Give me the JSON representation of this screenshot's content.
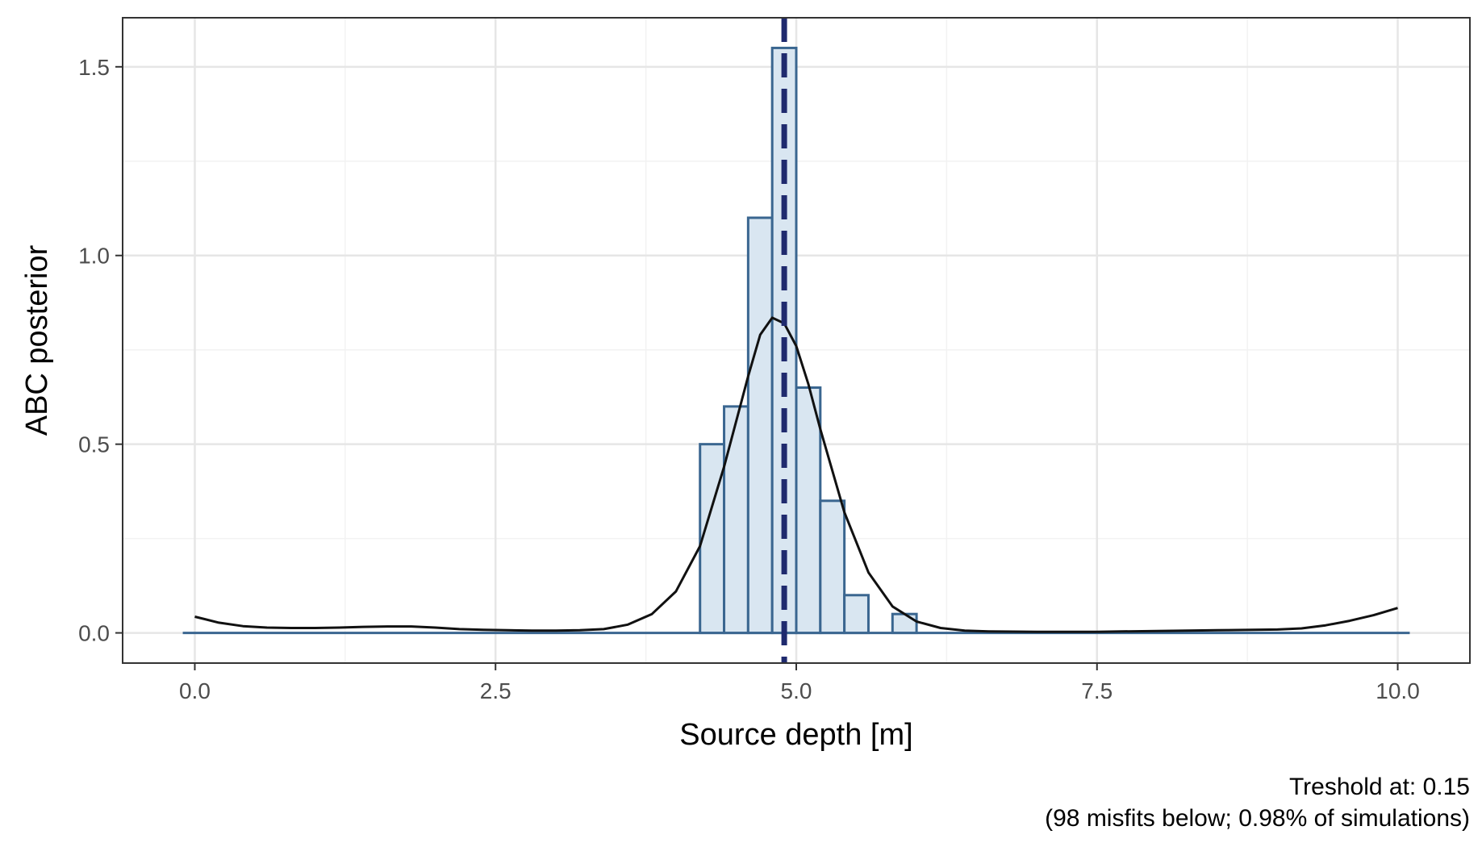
{
  "chart_data": {
    "type": "bar",
    "title": "",
    "xlabel": "Source depth [m]",
    "ylabel": "ABC posterior",
    "xlim": [
      -0.6,
      10.6
    ],
    "ylim": [
      -0.08,
      1.63
    ],
    "x_ticks": [
      {
        "value": 0.0,
        "label": "0.0"
      },
      {
        "value": 2.5,
        "label": "2.5"
      },
      {
        "value": 5.0,
        "label": "5.0"
      },
      {
        "value": 7.5,
        "label": "7.5"
      },
      {
        "value": 10.0,
        "label": "10.0"
      }
    ],
    "y_ticks": [
      {
        "value": 0.0,
        "label": "0.0"
      },
      {
        "value": 0.5,
        "label": "0.5"
      },
      {
        "value": 1.0,
        "label": "1.0"
      },
      {
        "value": 1.5,
        "label": "1.5"
      }
    ],
    "histogram": {
      "bin_width": 0.2,
      "bins": [
        {
          "x0": 4.2,
          "value": 0.5
        },
        {
          "x0": 4.4,
          "value": 0.6
        },
        {
          "x0": 4.6,
          "value": 1.1
        },
        {
          "x0": 4.8,
          "value": 1.55
        },
        {
          "x0": 5.0,
          "value": 0.65
        },
        {
          "x0": 5.2,
          "value": 0.35
        },
        {
          "x0": 5.4,
          "value": 0.1
        },
        {
          "x0": 5.8,
          "value": 0.05
        }
      ],
      "baseline_range": [
        -0.1,
        10.1
      ]
    },
    "density_curve": {
      "x": [
        0.0,
        0.2,
        0.4,
        0.6,
        0.8,
        1.0,
        1.2,
        1.4,
        1.6,
        1.8,
        2.0,
        2.2,
        2.4,
        2.6,
        2.8,
        3.0,
        3.2,
        3.4,
        3.6,
        3.8,
        4.0,
        4.2,
        4.4,
        4.6,
        4.7,
        4.8,
        4.9,
        5.0,
        5.1,
        5.2,
        5.4,
        5.6,
        5.8,
        6.0,
        6.2,
        6.4,
        6.6,
        7.0,
        7.5,
        8.0,
        8.5,
        9.0,
        9.2,
        9.4,
        9.6,
        9.8,
        10.0
      ],
      "y": [
        0.043,
        0.027,
        0.018,
        0.014,
        0.013,
        0.013,
        0.014,
        0.016,
        0.017,
        0.017,
        0.014,
        0.01,
        0.008,
        0.007,
        0.006,
        0.006,
        0.007,
        0.01,
        0.022,
        0.05,
        0.11,
        0.23,
        0.44,
        0.68,
        0.79,
        0.835,
        0.82,
        0.76,
        0.66,
        0.54,
        0.32,
        0.16,
        0.07,
        0.03,
        0.013,
        0.006,
        0.004,
        0.003,
        0.003,
        0.005,
        0.007,
        0.009,
        0.012,
        0.02,
        0.032,
        0.047,
        0.066
      ]
    },
    "vline": {
      "x": 4.9,
      "style": "dashed",
      "color": "#1f2a6e"
    },
    "caption": [
      "Treshold at: 0.15",
      "(98 misfits below; 0.98% of simulations)"
    ],
    "grid": true,
    "colors": {
      "bar_fill": "#d9e6f1",
      "bar_stroke": "#3a6690",
      "density": "#111111",
      "vline": "#1f2a6e",
      "grid_major": "#e6e6e6",
      "grid_minor": "#f2f2f2",
      "panel_border": "#333333"
    }
  }
}
